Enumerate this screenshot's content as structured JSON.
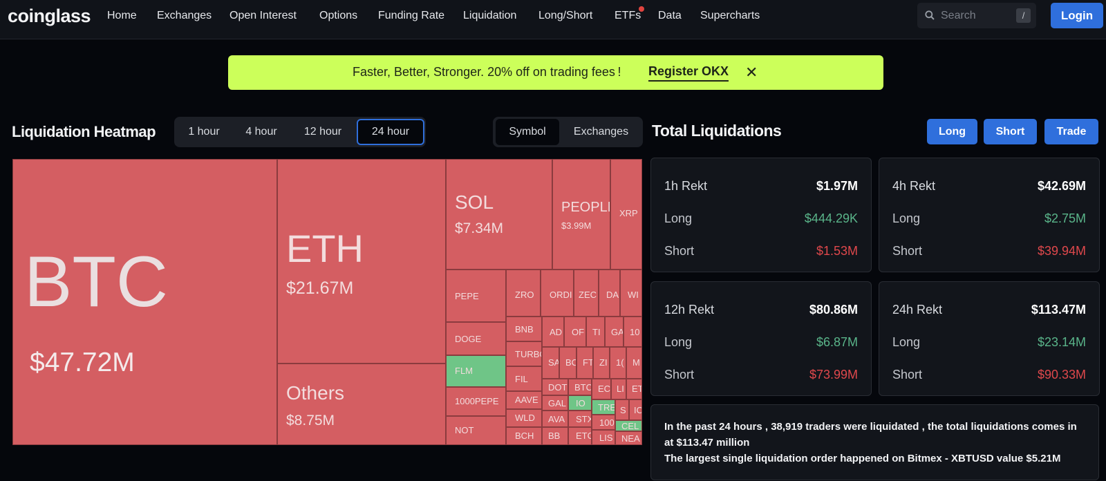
{
  "nav": {
    "logo": "coinglass",
    "items": [
      "Home",
      "Exchanges",
      "Open Interest",
      "Options",
      "Funding Rate",
      "Liquidation",
      "Long/Short",
      "ETFs",
      "Data",
      "Supercharts"
    ],
    "search_placeholder": "Search",
    "search_shortcut": "/",
    "login_label": "Login"
  },
  "promo": {
    "text": "Faster, Better, Stronger. 20% off on trading fees !",
    "link_label": "Register OKX",
    "close_glyph": "✕"
  },
  "heatmap": {
    "title": "Liquidation Heatmap",
    "timeframes": [
      "1 hour",
      "4 hour",
      "12 hour",
      "24 hour"
    ],
    "active_timeframe": "24 hour",
    "modes": [
      "Symbol",
      "Exchanges"
    ],
    "active_mode": "Symbol",
    "cells": [
      {
        "symbol": "BTC",
        "value": "$47.72M",
        "color": "#e0868a"
      },
      {
        "symbol": "ETH",
        "value": "$21.67M"
      },
      {
        "symbol": "Others",
        "value": "$8.75M"
      },
      {
        "symbol": "SOL",
        "value": "$7.34M"
      },
      {
        "symbol": "PEOPLE",
        "value": "$3.99M"
      },
      {
        "symbol": "XRP"
      },
      {
        "symbol": "PEPE"
      },
      {
        "symbol": "ZRO"
      },
      {
        "symbol": "ORDI"
      },
      {
        "symbol": "ZEC"
      },
      {
        "symbol": "DA"
      },
      {
        "symbol": "WI"
      },
      {
        "symbol": "DOGE"
      },
      {
        "symbol": "BNB"
      },
      {
        "symbol": "AD"
      },
      {
        "symbol": "OF"
      },
      {
        "symbol": "TI"
      },
      {
        "symbol": "GA"
      },
      {
        "symbol": "10"
      },
      {
        "symbol": "TURBO"
      },
      {
        "symbol": "SA"
      },
      {
        "symbol": "BC"
      },
      {
        "symbol": "FT"
      },
      {
        "symbol": "ZI"
      },
      {
        "symbol": "1("
      },
      {
        "symbol": "M"
      },
      {
        "symbol": "FLM",
        "color": "#6fc587"
      },
      {
        "symbol": "FIL"
      },
      {
        "symbol": "DOT"
      },
      {
        "symbol": "BTC"
      },
      {
        "symbol": "EC"
      },
      {
        "symbol": "LI"
      },
      {
        "symbol": "ET"
      },
      {
        "symbol": "1000PEPE"
      },
      {
        "symbol": "AAVE"
      },
      {
        "symbol": "GAL"
      },
      {
        "symbol": "IO",
        "color": "#6fc587"
      },
      {
        "symbol": "TRE",
        "color": "#6fc587"
      },
      {
        "symbol": "S"
      },
      {
        "symbol": "IC"
      },
      {
        "symbol": "WLD"
      },
      {
        "symbol": "AVA"
      },
      {
        "symbol": "STX"
      },
      {
        "symbol": "100"
      },
      {
        "symbol": "CEL",
        "color": "#6fc587"
      },
      {
        "symbol": "NOT"
      },
      {
        "symbol": "BCH"
      },
      {
        "symbol": "BB"
      },
      {
        "symbol": "ETC"
      },
      {
        "symbol": "LIS"
      },
      {
        "symbol": "NEA"
      }
    ]
  },
  "totals": {
    "title": "Total Liquidations",
    "buttons": [
      "Long",
      "Short",
      "Trade"
    ],
    "cards": [
      {
        "label": "1h Rekt",
        "total": "$1.97M",
        "long_label": "Long",
        "long": "$444.29K",
        "short_label": "Short",
        "short": "$1.53M"
      },
      {
        "label": "4h Rekt",
        "total": "$42.69M",
        "long_label": "Long",
        "long": "$2.75M",
        "short_label": "Short",
        "short": "$39.94M"
      },
      {
        "label": "12h Rekt",
        "total": "$80.86M",
        "long_label": "Long",
        "long": "$6.87M",
        "short_label": "Short",
        "short": "$73.99M"
      },
      {
        "label": "24h Rekt",
        "total": "$113.47M",
        "long_label": "Long",
        "long": "$23.14M",
        "short_label": "Short",
        "short": "$90.33M"
      }
    ],
    "summary_line1": "In the past 24 hours , 38,919 traders were liquidated , the total liquidations comes in at $113.47 million",
    "summary_line2": "The largest single liquidation order happened on Bitmex - XBTUSD value $5.21M",
    "colors": {
      "long": "#5ab58a",
      "short": "#e0484c",
      "accent": "#2f6fdc"
    }
  }
}
